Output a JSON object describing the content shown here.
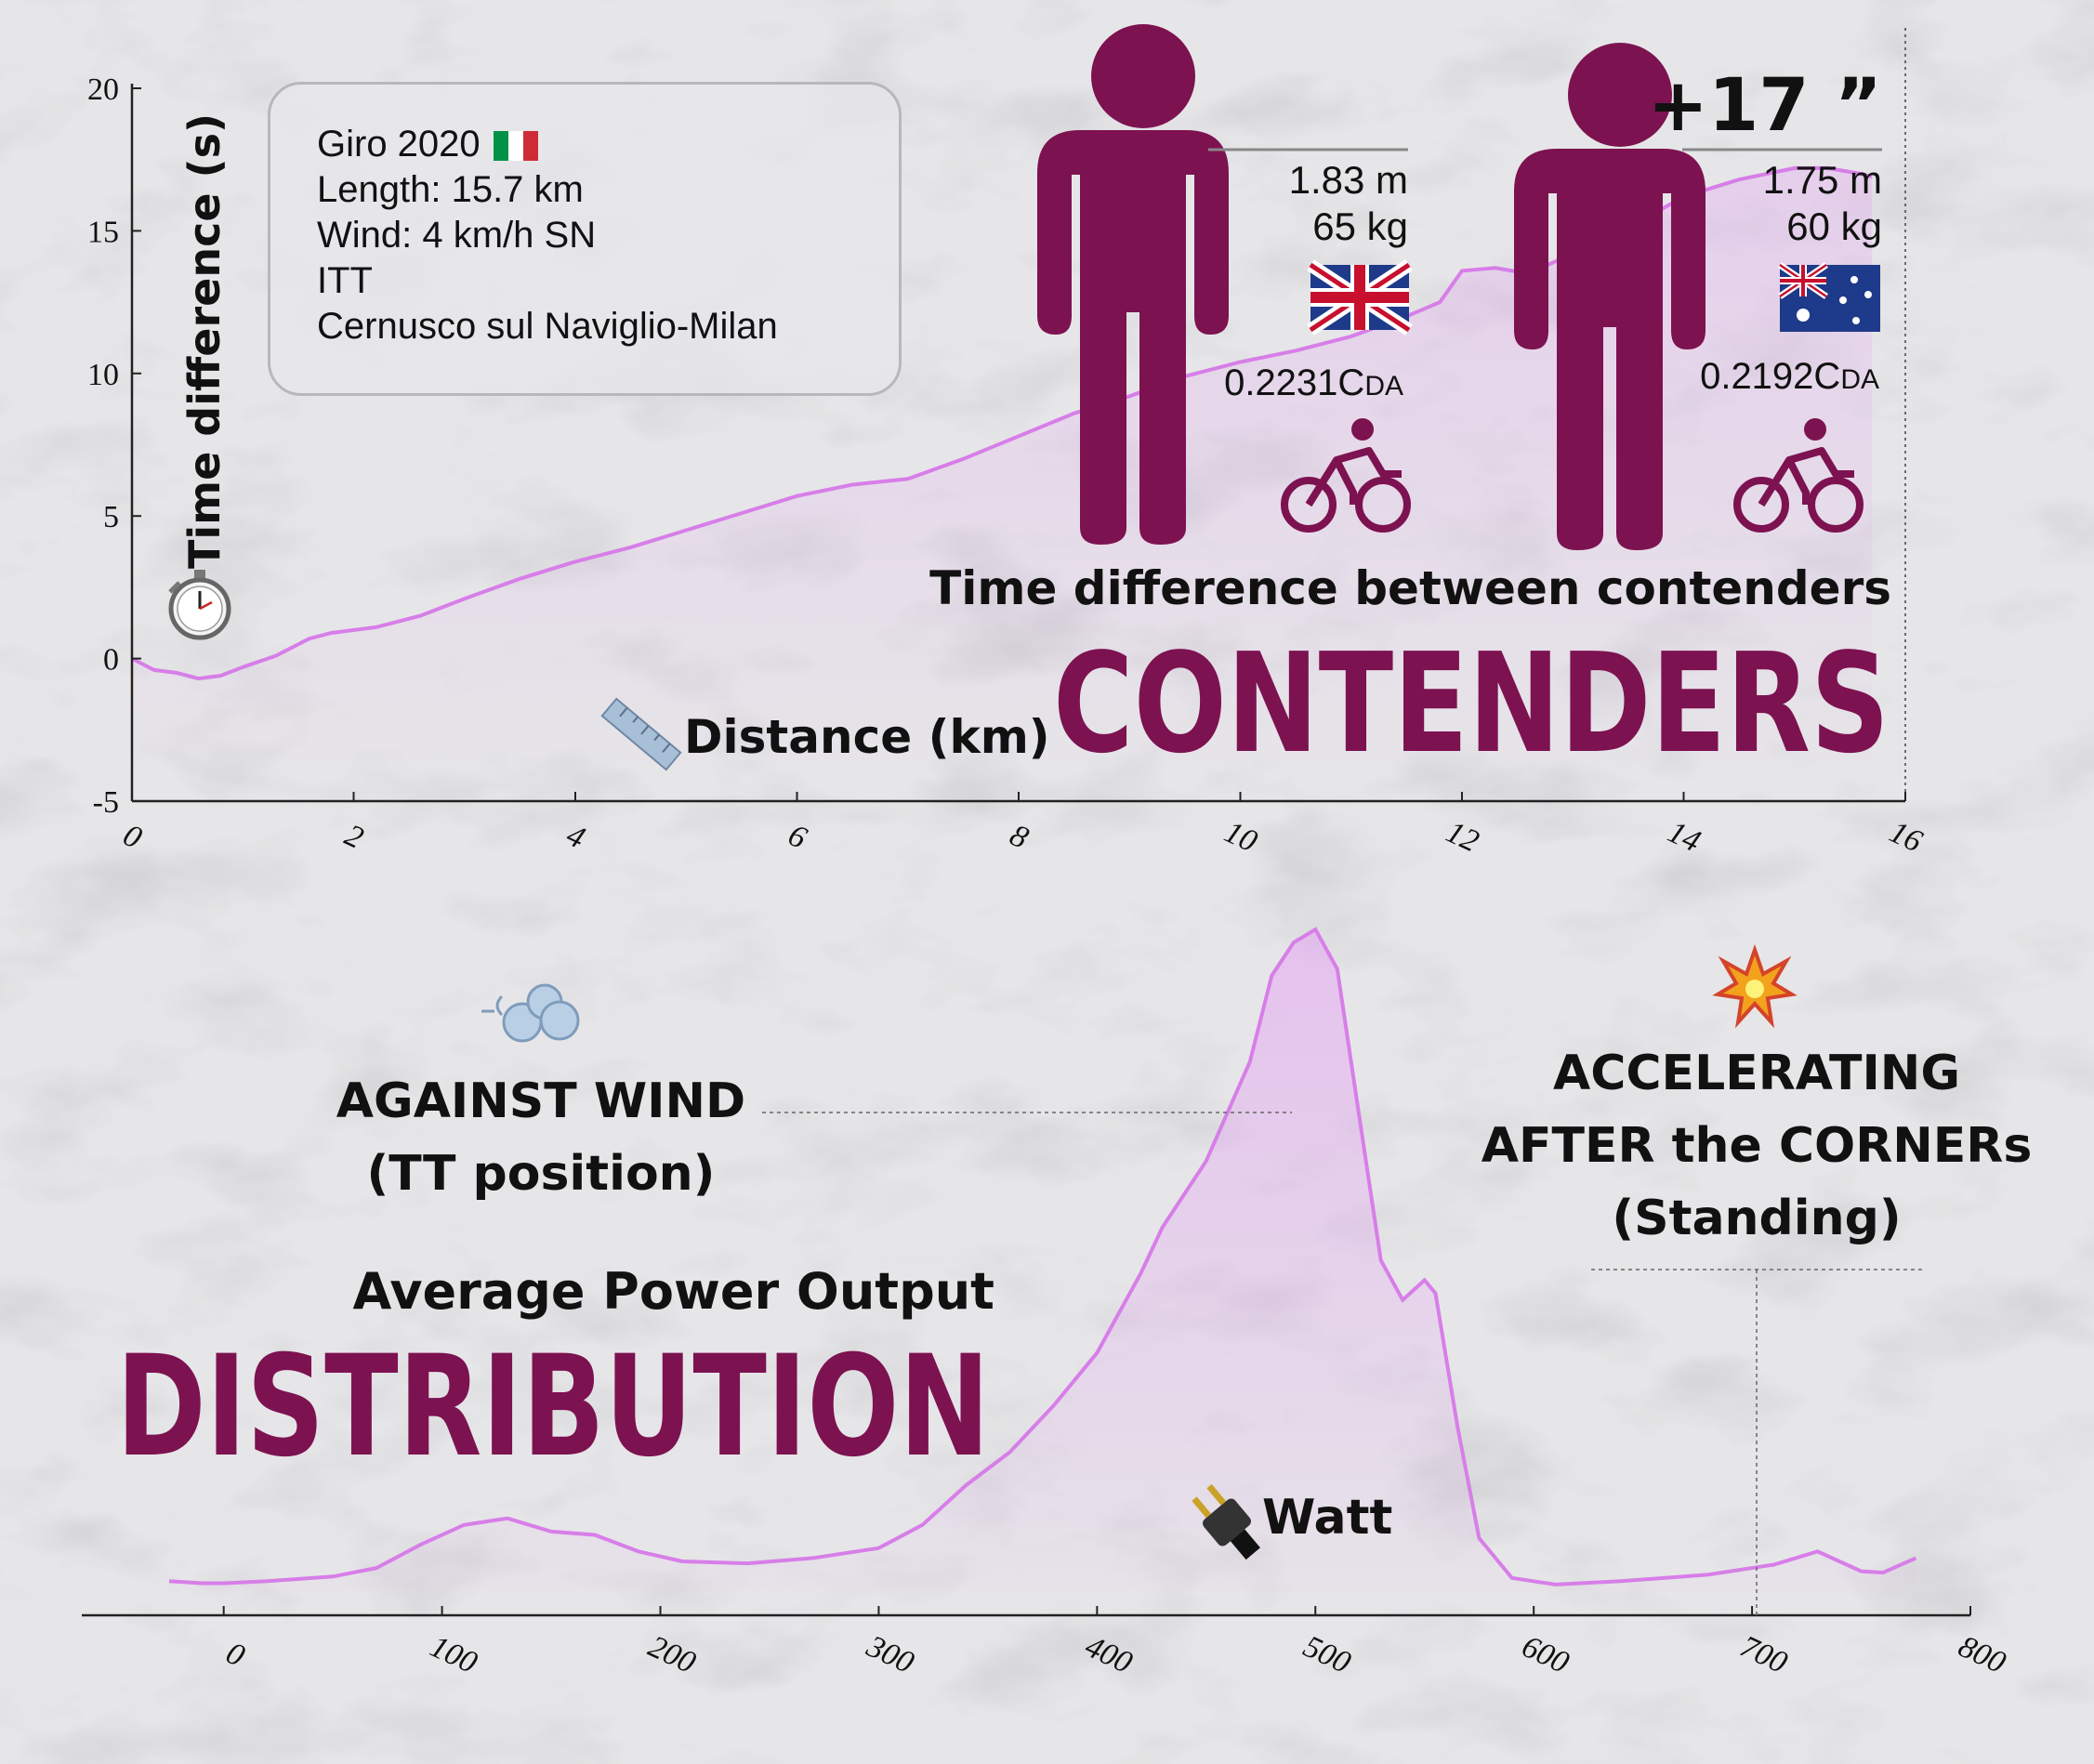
{
  "colors": {
    "accent": "#7d1251",
    "line": "#d77ee8",
    "fill": "#e4a3f2",
    "axis": "#222222"
  },
  "info_box": {
    "race": "Giro 2020",
    "race_flag_icon": "italy-flag-icon",
    "length": "Length: 15.7 km",
    "wind": "Wind: 4 km/h SN",
    "type": "ITT",
    "route": "Cernusco sul Naviglio-Milan"
  },
  "riders": [
    {
      "height": "1.83 m",
      "weight": "65 kg",
      "flag_icon": "uk-flag-icon",
      "cda_value": "0.2231C",
      "cda_subscript": "DA",
      "icon": "cyclist-icon"
    },
    {
      "height": "1.75 m",
      "weight": "60 kg",
      "flag_icon": "australia-flag-icon",
      "cda_value": "0.2192C",
      "cda_subscript": "DA",
      "icon": "cyclist-icon"
    }
  ],
  "top_section": {
    "gap_label": "+17 ”",
    "subtitle": "Time difference between  contenders",
    "title": "CONTENDERS"
  },
  "bottom_section": {
    "subtitle": "Average Power Output",
    "title": "DISTRIBUTION",
    "wind_icon": "wind-icon",
    "annotation_wind_line1": "AGAINST WIND",
    "annotation_wind_line2": "(TT position)",
    "explosion_icon": "collision-icon",
    "annotation_accel_line1": "ACCELERATING",
    "annotation_accel_line2": "AFTER the CORNERs",
    "annotation_accel_line3": "(Standing)",
    "plug_icon": "electric-plug-icon"
  },
  "chart_data": [
    {
      "type": "line",
      "xlabel": "Distance (km)",
      "ylabel": "Time difference (s)",
      "xlim": [
        0,
        16
      ],
      "ylim": [
        -5,
        20
      ],
      "x_ticks": [
        "0",
        "2",
        "4",
        "6",
        "8",
        "10",
        "12",
        "14",
        "16"
      ],
      "y_ticks": [
        "-5",
        "0",
        "5",
        "10",
        "15",
        "20"
      ],
      "xlabel_icon": "ruler-icon",
      "ylabel_icon": "stopwatch-icon",
      "series": [
        {
          "x": [
            0,
            0.2,
            0.4,
            0.6,
            0.8,
            1.0,
            1.3,
            1.6,
            1.8,
            2.2,
            2.6,
            3.0,
            3.5,
            4.0,
            4.5,
            5.0,
            5.5,
            6.0,
            6.5,
            7.0,
            7.5,
            8.0,
            8.5,
            9.0,
            9.5,
            10.0,
            10.5,
            11.0,
            11.5,
            11.8,
            12.0,
            12.3,
            12.6,
            13.0,
            13.5,
            14.0,
            14.5,
            15.0,
            15.3,
            15.6,
            15.7
          ],
          "y": [
            0,
            -0.4,
            -0.5,
            -0.7,
            -0.6,
            -0.3,
            0.1,
            0.7,
            0.9,
            1.1,
            1.5,
            2.1,
            2.8,
            3.4,
            3.9,
            4.5,
            5.1,
            5.7,
            6.1,
            6.3,
            7.0,
            7.8,
            8.6,
            9.2,
            9.9,
            10.4,
            10.8,
            11.3,
            12.0,
            12.5,
            13.6,
            13.7,
            13.5,
            14.2,
            15.1,
            16.2,
            16.8,
            17.2,
            17.2,
            17.0,
            16.9
          ]
        }
      ]
    },
    {
      "type": "area",
      "xlabel": "Watt",
      "xlim": [
        -65,
        800
      ],
      "x_ticks": [
        "0",
        "100",
        "200",
        "300",
        "400",
        "500",
        "600",
        "700",
        "800"
      ],
      "series": [
        {
          "x": [
            -25,
            -10,
            0,
            20,
            50,
            70,
            90,
            110,
            130,
            150,
            170,
            190,
            210,
            240,
            270,
            300,
            320,
            340,
            360,
            380,
            400,
            420,
            430,
            450,
            470,
            480,
            490,
            500,
            510,
            520,
            530,
            540,
            550,
            555,
            565,
            575,
            590,
            610,
            640,
            680,
            710,
            730,
            740,
            750,
            760,
            775
          ],
          "y": [
            0.015,
            0.012,
            0.012,
            0.015,
            0.022,
            0.035,
            0.07,
            0.1,
            0.11,
            0.09,
            0.085,
            0.06,
            0.045,
            0.042,
            0.05,
            0.065,
            0.1,
            0.16,
            0.21,
            0.28,
            0.36,
            0.48,
            0.55,
            0.65,
            0.8,
            0.93,
            0.98,
            1.0,
            0.94,
            0.72,
            0.5,
            0.44,
            0.47,
            0.45,
            0.25,
            0.08,
            0.02,
            0.01,
            0.015,
            0.025,
            0.04,
            0.06,
            0.045,
            0.03,
            0.028,
            0.05
          ]
        }
      ]
    }
  ]
}
